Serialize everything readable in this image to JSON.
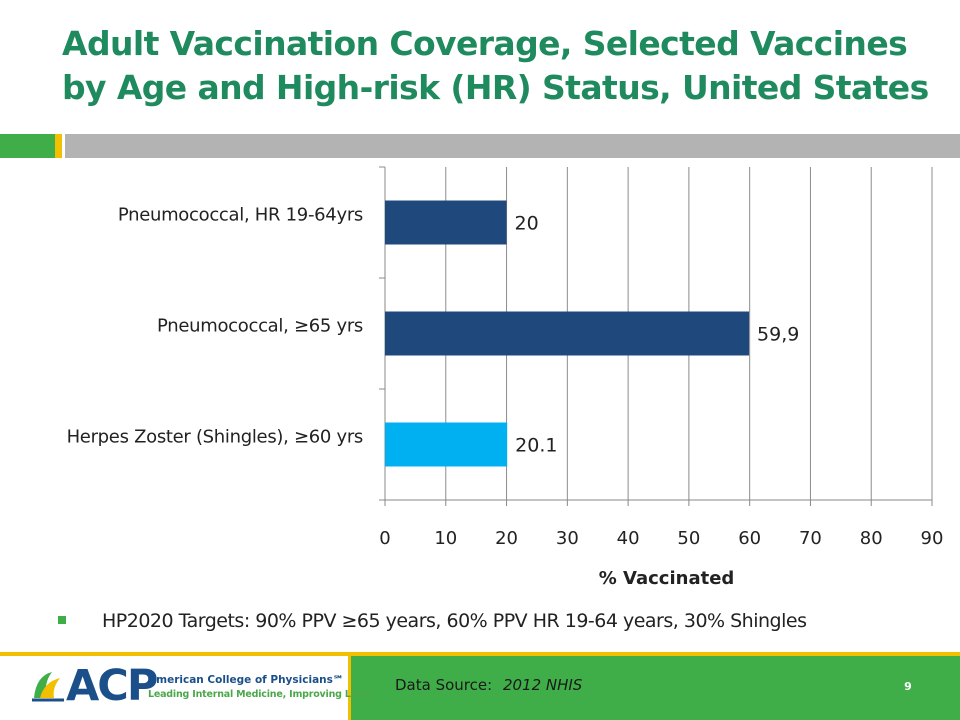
{
  "slide": {
    "title_line1": "Adult Vaccination Coverage, Selected Vaccines",
    "title_line2": "by Age and High-risk (HR) Status, United States",
    "bullet": "HP2020 Targets:  90% PPV ≥65 years, 60% PPV HR 19-64 years, 30% Shingles",
    "source_label": "Data Source:",
    "source_value": "2012 NHIS",
    "page_number": "9",
    "logo": {
      "acp": "ACP",
      "name": "American College of Physicians℠",
      "tagline": "Leading Internal Medicine, Improving Lives"
    },
    "colors": {
      "title": "#1f8a5e",
      "accent_green": "#3fae49",
      "accent_yellow": "#f2c000",
      "rule_gray": "#b3b3b3"
    }
  },
  "chart_data": {
    "type": "bar",
    "orientation": "horizontal",
    "categories": [
      "Pneumococcal, HR 19-64yrs",
      "Pneumococcal, ≥65 yrs",
      "Herpes Zoster (Shingles), ≥60 yrs"
    ],
    "values": [
      20,
      59.9,
      20.1
    ],
    "data_labels": [
      "20",
      "59,9",
      "20.1"
    ],
    "bar_colors": [
      "#1f497d",
      "#1f497d",
      "#00b0f0"
    ],
    "xlabel": "% Vaccinated",
    "ylabel": "",
    "xlim": [
      0,
      90
    ],
    "xticks": [
      0,
      10,
      20,
      30,
      40,
      50,
      60,
      70,
      80,
      90
    ],
    "grid": "vertical",
    "legend": "none"
  }
}
